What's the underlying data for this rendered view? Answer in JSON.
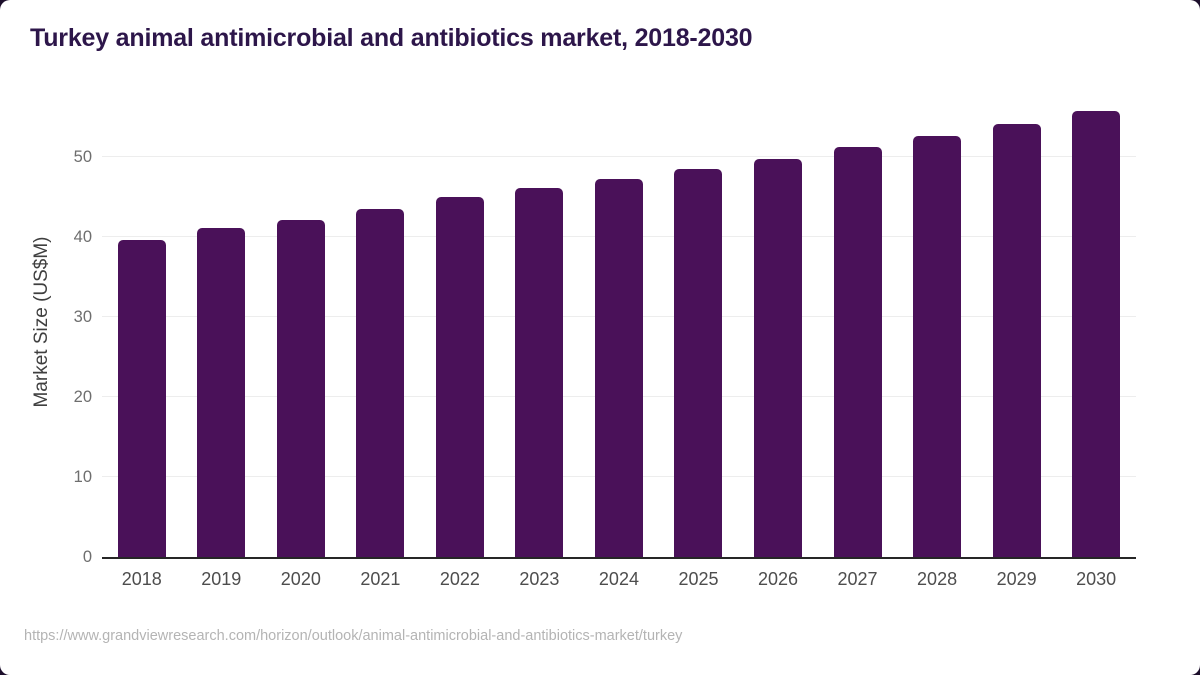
{
  "page": {
    "source_url": "https://www.grandviewresearch.com/horizon/outlook/animal-antimicrobial-and-antibiotics-market/turkey"
  },
  "colors": {
    "bar": "#4a1159",
    "title": "#2d164a",
    "axis": "#262626",
    "gridline": "#ededed",
    "tick_label": "#6e6e6e",
    "year_label": "#4d4d4d",
    "url": "#b4b4b4",
    "corner_frame": "#1c0e2b"
  },
  "chart_data": {
    "type": "bar",
    "title": "Turkey animal antimicrobial and antibiotics market, 2018-2030",
    "categories": [
      "2018",
      "2019",
      "2020",
      "2021",
      "2022",
      "2023",
      "2024",
      "2025",
      "2026",
      "2027",
      "2028",
      "2029",
      "2030"
    ],
    "values": [
      39.6,
      41.1,
      42.1,
      43.5,
      45.0,
      46.1,
      47.3,
      48.5,
      49.8,
      51.2,
      52.6,
      54.1,
      55.8
    ],
    "xlabel": "",
    "ylabel": "Market Size (US$M)",
    "ylim": [
      0,
      57.5
    ],
    "yticks": [
      0,
      10,
      20,
      30,
      40,
      50
    ],
    "grid": true,
    "legend": false,
    "bar_color": "#4a1159"
  }
}
